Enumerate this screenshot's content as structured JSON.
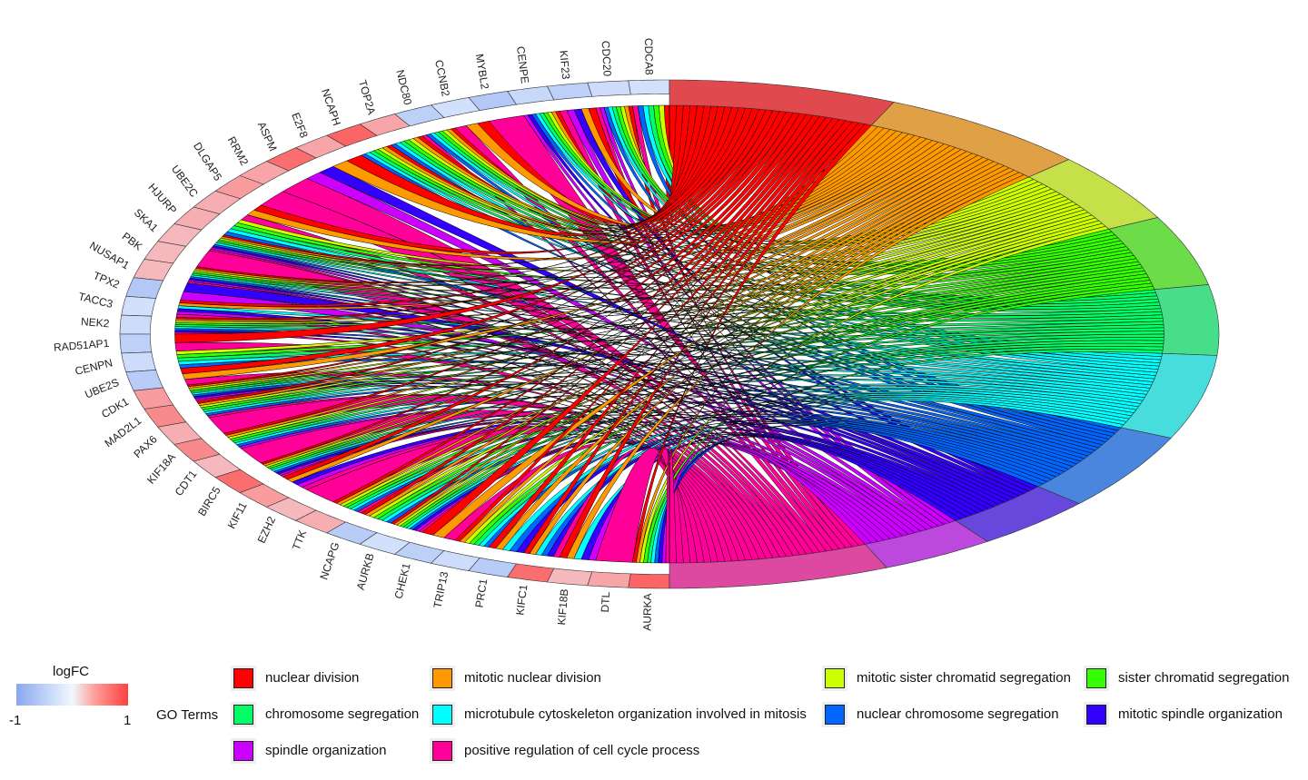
{
  "genes": [
    "CDCA8",
    "CDC20",
    "KIF23",
    "CENPE",
    "MYBL2",
    "CCNB2",
    "NDC80",
    "TOP2A",
    "NCAPH",
    "E2F8",
    "ASPM",
    "RRM2",
    "DLGAP5",
    "UBE2C",
    "HJURP",
    "SKA1",
    "PBK",
    "NUSAP1",
    "TPX2",
    "TACC3",
    "NEK2",
    "RAD51AP1",
    "CENPN",
    "UBE2S",
    "CDK1",
    "MAD2L1",
    "PAX6",
    "KIF18A",
    "CDT1",
    "BIRC5",
    "KIF11",
    "EZH2",
    "TTK",
    "NCAPG",
    "AURKB",
    "CHEK1",
    "TRIP13",
    "PRC1",
    "KIFC1",
    "KIF18B",
    "DTL",
    "AURKA"
  ],
  "logFC": [
    -0.3,
    -0.35,
    -0.5,
    -0.4,
    -0.6,
    -0.3,
    -0.5,
    0.45,
    0.8,
    0.45,
    0.75,
    0.45,
    0.5,
    0.4,
    0.4,
    0.35,
    0.35,
    0.35,
    -0.6,
    -0.3,
    -0.35,
    -0.5,
    -0.35,
    -0.55,
    0.5,
    0.6,
    0.4,
    0.6,
    0.35,
    0.75,
    0.5,
    0.35,
    0.4,
    -0.55,
    -0.3,
    -0.5,
    -0.35,
    -0.55,
    0.75,
    0.35,
    0.45,
    0.8
  ],
  "terms": [
    {
      "name": "nuclear division",
      "color": "#FF0000",
      "ring": "#E04A4E"
    },
    {
      "name": "mitotic nuclear division",
      "color": "#FF9900",
      "ring": "#E0A045"
    },
    {
      "name": "mitotic sister chromatid segregation",
      "color": "#CCFF00",
      "ring": "#C6E04A"
    },
    {
      "name": "sister chromatid segregation",
      "color": "#33FF00",
      "ring": "#6CDD48"
    },
    {
      "name": "chromosome segregation",
      "color": "#00FF66",
      "ring": "#48DD88"
    },
    {
      "name": "microtubule cytoskeleton organization involved in mitosis",
      "color": "#00FFFF",
      "ring": "#48DDDD"
    },
    {
      "name": "nuclear chromosome segregation",
      "color": "#0066FF",
      "ring": "#4A86DD"
    },
    {
      "name": "mitotic spindle organization",
      "color": "#3300FF",
      "ring": "#6648DD"
    },
    {
      "name": "spindle organization",
      "color": "#CC00FF",
      "ring": "#BC48DD"
    },
    {
      "name": "positive regulation of cell cycle process",
      "color": "#FF0099",
      "ring": "#DD48A0"
    }
  ],
  "membership": [
    "1011111001",
    "1111111011",
    "1100000111",
    "1111111110",
    "0000000001",
    "1100000001",
    "1111111001",
    "1111111000",
    "1111111000",
    "1100000000",
    "0000000110",
    "0000000001",
    "0000000001",
    "1100000001",
    "0011111000",
    "1111111111",
    "0000000001",
    "1111111111",
    "0000000110",
    "1100010111",
    "1111111101",
    "1000000001",
    "0011111000",
    "1100000001",
    "1111111111",
    "1111111001",
    "0000000001",
    "1111111010",
    "0000000001",
    "1111111111",
    "1100000111",
    "0000000001",
    "1111111001",
    "1111111000",
    "1111111111",
    "1100000001",
    "1111111000",
    "1100011100",
    "1100011101",
    "1100010110",
    "0000000001",
    "1111111111"
  ],
  "legend": {
    "logfc_title": "logFC",
    "logfc_min": "-1",
    "logfc_max": "1",
    "low_color": "#8AA8F0",
    "mid_color": "#F0F8FF",
    "high_color": "#FF4040",
    "go_title": "GO Terms"
  }
}
